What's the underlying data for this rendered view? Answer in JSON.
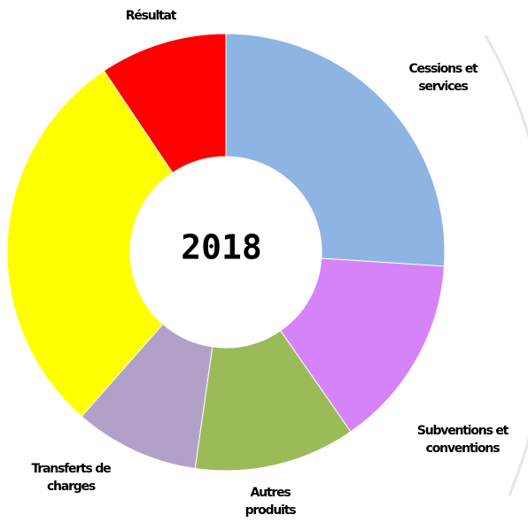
{
  "chart_data": {
    "type": "donut",
    "center_label": "2018",
    "categories": [
      "Cessions et services",
      "Subventions et conventions",
      "Autres produits",
      "Transferts de charges",
      null,
      "Résultat"
    ],
    "values": [
      26,
      14.3,
      11.9,
      9.2,
      29.1,
      9.4
    ],
    "colors": [
      "#8eb4e3",
      "#d683fa",
      "#9bbb59",
      "#b2a1c7",
      "#ffff00",
      "#ff0000"
    ]
  }
}
